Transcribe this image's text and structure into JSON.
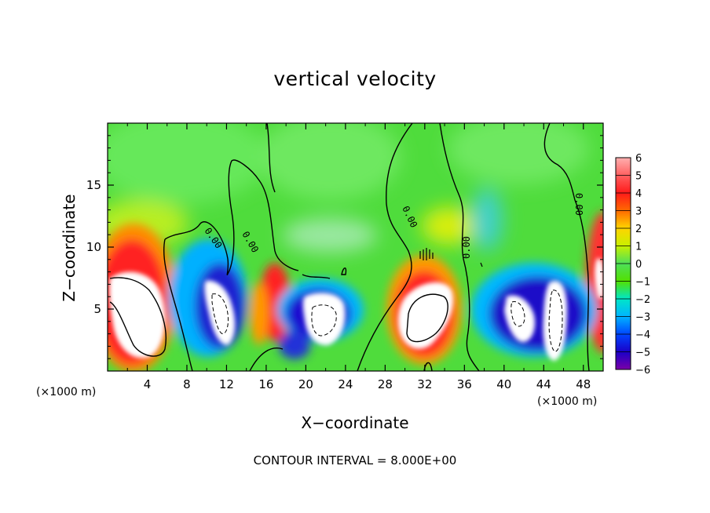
{
  "chart_data": {
    "type": "heatmap",
    "title": "vertical velocity",
    "xlabel": "X−coordinate",
    "ylabel": "Z−coordinate",
    "x_unit_label": "(×1000 m)",
    "x_unit_label_right": "(×1000 m)",
    "xlim": [
      0,
      50
    ],
    "ylim": [
      0,
      20
    ],
    "xticks": [
      "4",
      "8",
      "12",
      "16",
      "20",
      "24",
      "28",
      "32",
      "36",
      "40",
      "44",
      "48"
    ],
    "yticks": [
      "5",
      "10",
      "15"
    ],
    "colorbar": {
      "min": -6,
      "max": 6,
      "tick_labels": [
        "6",
        "5",
        "4",
        "3",
        "2",
        "1",
        "0",
        "−1",
        "−2",
        "−3",
        "−4",
        "−5",
        "−6"
      ]
    },
    "contour_labels": [
      "0.00",
      "0.00",
      "0.00",
      "0.00",
      "0.00"
    ],
    "contour_interval_text": "CONTOUR INTERVAL = 8.000E+00",
    "features": [
      {
        "kind": "updraft",
        "x": 3,
        "z": 5.5,
        "peak": 8
      },
      {
        "kind": "downdraft",
        "x": 11,
        "z": 5,
        "peak": -7
      },
      {
        "kind": "updraft",
        "x": 16.5,
        "z": 5,
        "peak": 4
      },
      {
        "kind": "downdraft",
        "x": 21.5,
        "z": 5.2,
        "peak": -7
      },
      {
        "kind": "updraft",
        "x": 32,
        "z": 5.5,
        "peak": 8
      },
      {
        "kind": "downdraft",
        "x": 44,
        "z": 5,
        "peak": -7
      }
    ],
    "colors": {
      "scale": [
        "#7a00a8",
        "#1a00c8",
        "#0046ff",
        "#00b4ff",
        "#00e6c8",
        "#52e000",
        "#4ee05a",
        "#c8f000",
        "#ffd400",
        "#ff6a00",
        "#ff1a1a",
        "#ff6060",
        "#ffb0b0"
      ]
    }
  }
}
